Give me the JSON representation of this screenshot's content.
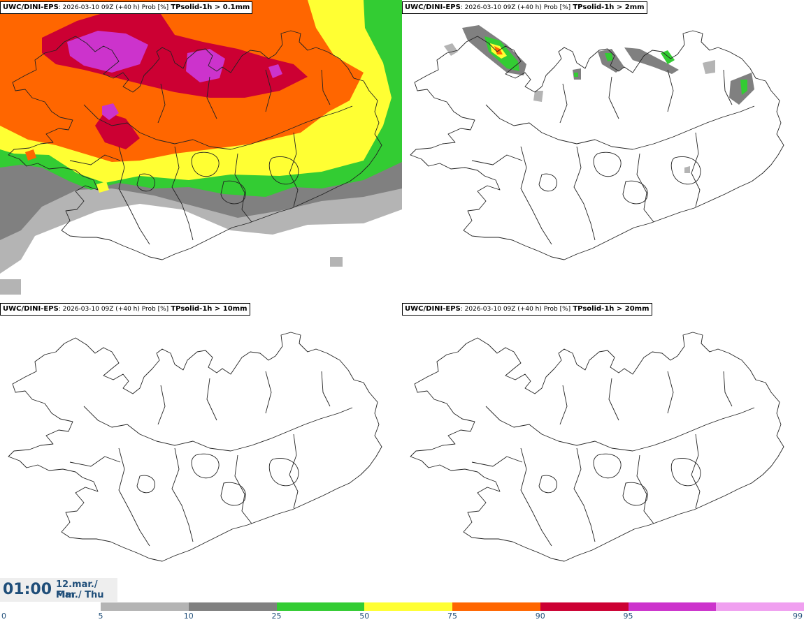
{
  "panels": [
    {
      "model": "UWC/DINI-EPS",
      "info": ": 2026-03-10 09Z (+40 h) Prob [%]",
      "variable": "TPsolid-1h > 0.1mm"
    },
    {
      "model": "UWC/DINI-EPS",
      "info": ": 2026-03-10 09Z (+40 h) Prob [%]",
      "variable": "TPsolid-1h > 2mm"
    },
    {
      "model": "UWC/DINI-EPS",
      "info": ": 2026-03-10 09Z (+40 h) Prob [%]",
      "variable": "TPsolid-1h > 10mm"
    },
    {
      "model": "UWC/DINI-EPS",
      "info": ": 2026-03-10 09Z (+40 h) Prob [%]",
      "variable": "TPsolid-1h > 20mm"
    }
  ],
  "valid_time": {
    "time": "01:00",
    "date_line1": "12.mar./ Mar",
    "date_line2": "Fim./ Thu"
  },
  "legend": {
    "ticks": [
      "0",
      "5",
      "10",
      "25",
      "50",
      "75",
      "90",
      "95",
      "99"
    ],
    "colors": [
      "#b4b4b4",
      "#808080",
      "#33cc33",
      "#ffff33",
      "#ff6600",
      "#cc0033",
      "#cc33cc",
      "#f0a0f0"
    ]
  }
}
